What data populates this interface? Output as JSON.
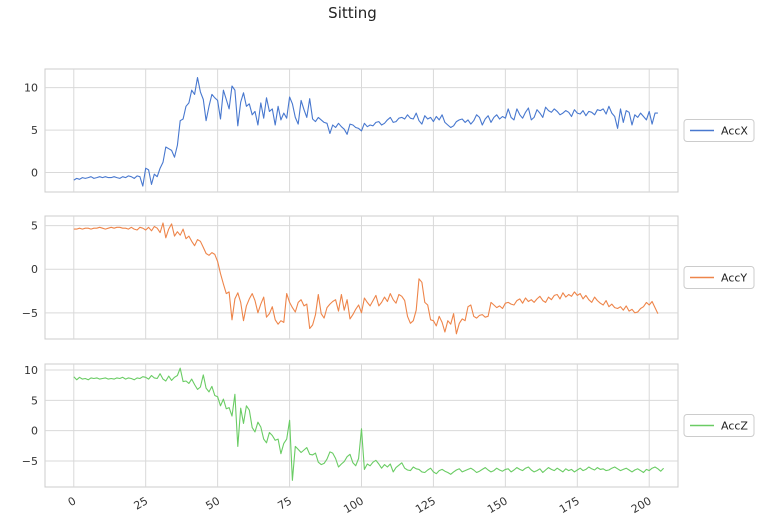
{
  "title": "Sitting",
  "chart_data": [
    {
      "type": "line",
      "series": [
        {
          "name": "AccX",
          "color": "#4878cf",
          "values": [
            -0.9,
            -0.7,
            -0.8,
            -0.6,
            -0.7,
            -0.6,
            -0.5,
            -0.7,
            -0.6,
            -0.5,
            -0.6,
            -0.5,
            -0.6,
            -0.6,
            -0.5,
            -0.6,
            -0.7,
            -0.5,
            -0.6,
            -0.4,
            -0.5,
            -0.7,
            -0.4,
            -0.5,
            -1.6,
            0.5,
            0.3,
            -1.4,
            -0.2,
            -0.5,
            0.5,
            1.2,
            3.0,
            2.8,
            2.6,
            1.8,
            3.2,
            6.1,
            6.3,
            7.8,
            8.2,
            9.7,
            9.2,
            11.2,
            9.5,
            8.6,
            6.1,
            7.8,
            9.2,
            8.8,
            8.5,
            6.3,
            9.7,
            8.6,
            7.5,
            10.2,
            9.7,
            5.5,
            8.3,
            9.4,
            7.8,
            8.1,
            6.8,
            7.2,
            5.6,
            8.2,
            6.4,
            8.8,
            7.2,
            7.5,
            5.6,
            7.8,
            6.2,
            7.0,
            6.4,
            8.9,
            8.1,
            6.5,
            5.7,
            8.5,
            7.4,
            6.5,
            8.7,
            6.3,
            6.0,
            6.5,
            6.2,
            5.9,
            5.8,
            4.6,
            5.6,
            5.3,
            5.8,
            5.4,
            5.1,
            4.5,
            5.7,
            5.6,
            5.3,
            5.2,
            4.9,
            5.8,
            5.4,
            5.6,
            5.5,
            5.9,
            6.0,
            5.6,
            5.8,
            6.2,
            6.5,
            5.9,
            6.0,
            6.4,
            6.5,
            6.3,
            6.8,
            6.4,
            6.3,
            7.0,
            6.1,
            5.7,
            6.7,
            6.3,
            6.5,
            6.0,
            6.6,
            6.2,
            6.8,
            5.9,
            5.6,
            5.3,
            5.5,
            6.0,
            6.2,
            6.3,
            5.9,
            6.2,
            5.7,
            6.1,
            6.8,
            6.5,
            5.6,
            6.3,
            6.7,
            5.9,
            6.5,
            6.8,
            6.3,
            6.6,
            6.4,
            7.5,
            6.5,
            6.2,
            7.5,
            6.8,
            6.4,
            7.1,
            7.6,
            6.2,
            6.5,
            7.4,
            7.0,
            6.5,
            7.7,
            7.3,
            7.1,
            7.5,
            7.2,
            6.8,
            7.0,
            7.3,
            7.1,
            6.6,
            7.4,
            7.0,
            6.9,
            7.3,
            6.7,
            7.2,
            7.1,
            6.8,
            7.4,
            7.3,
            7.5,
            6.9,
            7.8,
            7.0,
            6.6,
            5.2,
            7.5,
            5.9,
            7.3,
            7.1,
            5.6,
            6.8,
            6.5,
            7.0,
            6.6,
            6.2,
            7.2,
            5.7,
            7.0,
            7.0
          ]
        }
      ],
      "ylim": [
        -2.3,
        12.2
      ],
      "yticks": [
        0,
        5,
        10
      ],
      "ytick_labels": [
        "0",
        "5",
        "10"
      ],
      "xlim": [
        -10,
        210
      ],
      "grid": true,
      "legend": "right"
    },
    {
      "type": "line",
      "series": [
        {
          "name": "AccY",
          "color": "#ee854a",
          "values": [
            4.6,
            4.6,
            4.7,
            4.6,
            4.7,
            4.7,
            4.6,
            4.7,
            4.7,
            4.8,
            4.7,
            4.6,
            4.7,
            4.8,
            4.7,
            4.8,
            4.8,
            4.7,
            4.7,
            4.6,
            4.8,
            4.6,
            4.5,
            4.8,
            4.7,
            4.5,
            4.8,
            4.4,
            4.9,
            4.7,
            4.2,
            5.3,
            3.6,
            4.6,
            5.2,
            3.8,
            4.3,
            3.9,
            4.6,
            3.5,
            3.8,
            3.2,
            2.7,
            3.4,
            3.2,
            2.5,
            1.8,
            1.6,
            1.9,
            1.7,
            0.9,
            -0.5,
            -1.7,
            -2.8,
            -2.6,
            -5.8,
            -3.4,
            -2.7,
            -3.8,
            -5.9,
            -4.2,
            -3.4,
            -2.8,
            -3.6,
            -5.0,
            -4.0,
            -3.2,
            -5.5,
            -5.1,
            -4.3,
            -5.8,
            -6.3,
            -5.9,
            -6.1,
            -2.8,
            -3.8,
            -4.4,
            -4.9,
            -3.8,
            -3.5,
            -4.2,
            -4.0,
            -6.8,
            -6.4,
            -5.2,
            -2.9,
            -5.1,
            -5.6,
            -4.4,
            -4.0,
            -3.7,
            -3.5,
            -4.8,
            -2.9,
            -4.7,
            -3.5,
            -5.7,
            -5.2,
            -4.6,
            -4.1,
            -5.0,
            -3.3,
            -3.8,
            -4.2,
            -3.6,
            -3.0,
            -4.2,
            -3.8,
            -3.2,
            -3.7,
            -2.8,
            -3.5,
            -3.9,
            -2.9,
            -3.1,
            -3.6,
            -5.4,
            -6.2,
            -5.9,
            -4.7,
            -1.1,
            -1.5,
            -3.8,
            -4.1,
            -5.8,
            -5.9,
            -6.5,
            -5.4,
            -6.1,
            -7.2,
            -5.9,
            -6.3,
            -5.1,
            -7.4,
            -6.2,
            -5.7,
            -5.9,
            -4.3,
            -4.1,
            -5.4,
            -5.6,
            -5.3,
            -5.2,
            -5.5,
            -5.4,
            -3.8,
            -4.1,
            -4.4,
            -4.2,
            -4.5,
            -3.9,
            -3.8,
            -4.0,
            -4.1,
            -3.6,
            -3.4,
            -3.9,
            -3.3,
            -3.7,
            -3.5,
            -3.8,
            -3.4,
            -3.1,
            -3.6,
            -3.8,
            -3.2,
            -3.5,
            -3.0,
            -2.9,
            -3.4,
            -2.7,
            -3.2,
            -2.9,
            -3.1,
            -2.6,
            -3.0,
            -2.8,
            -3.4,
            -3.0,
            -3.5,
            -3.8,
            -3.2,
            -3.6,
            -3.9,
            -4.1,
            -3.6,
            -4.3,
            -4.0,
            -4.4,
            -4.5,
            -4.3,
            -4.7,
            -4.2,
            -4.8,
            -4.6,
            -5.0,
            -4.9,
            -4.5,
            -4.3,
            -3.8,
            -4.1,
            -3.7,
            -4.4,
            -5.1
          ]
        }
      ],
      "ylim": [
        -8.0,
        6.1
      ],
      "yticks": [
        -5,
        0,
        5
      ],
      "ytick_labels": [
        "−5",
        "0",
        "5"
      ],
      "xlim": [
        -10,
        210
      ],
      "grid": true,
      "legend": "right"
    },
    {
      "type": "line",
      "series": [
        {
          "name": "AccZ",
          "color": "#6acc64",
          "values": [
            8.9,
            8.4,
            8.8,
            8.5,
            8.6,
            8.4,
            8.7,
            8.6,
            8.7,
            8.5,
            8.6,
            8.7,
            8.5,
            8.6,
            8.5,
            8.7,
            8.6,
            8.8,
            8.5,
            8.7,
            8.6,
            8.4,
            8.7,
            8.6,
            8.9,
            8.8,
            8.5,
            9.1,
            8.7,
            8.6,
            9.4,
            8.5,
            8.2,
            9.0,
            8.3,
            8.8,
            9.1,
            10.3,
            8.1,
            8.2,
            7.8,
            8.5,
            7.6,
            6.8,
            7.2,
            9.2,
            7.0,
            6.4,
            7.3,
            5.8,
            5.6,
            4.1,
            5.2,
            3.6,
            3.8,
            2.4,
            6.0,
            -2.6,
            3.7,
            1.2,
            4.1,
            3.4,
            0.5,
            -0.2,
            1.4,
            0.6,
            -1.4,
            -2.0,
            -0.3,
            -0.8,
            -1.6,
            -1.4,
            -3.8,
            -2.1,
            -1.4,
            1.7,
            -8.2,
            -2.6,
            -3.1,
            -3.6,
            -3.2,
            -2.8,
            -3.9,
            -4.0,
            -3.7,
            -5.2,
            -5.6,
            -5.4,
            -4.7,
            -3.5,
            -3.7,
            -4.6,
            -6.0,
            -5.5,
            -5.1,
            -4.3,
            -3.9,
            -5.3,
            -5.8,
            -4.6,
            0.3,
            -6.4,
            -5.5,
            -5.8,
            -5.2,
            -4.9,
            -5.5,
            -6.2,
            -5.6,
            -6.0,
            -5.5,
            -6.8,
            -6.1,
            -5.7,
            -5.3,
            -6.2,
            -6.5,
            -6.6,
            -6.0,
            -6.3,
            -6.4,
            -6.8,
            -6.9,
            -6.5,
            -6.2,
            -6.8,
            -7.1,
            -6.6,
            -6.4,
            -6.7,
            -6.9,
            -7.2,
            -6.8,
            -6.5,
            -6.3,
            -6.8,
            -6.6,
            -6.4,
            -6.2,
            -6.5,
            -6.9,
            -6.7,
            -6.4,
            -6.1,
            -6.5,
            -6.8,
            -6.6,
            -6.2,
            -6.5,
            -6.7,
            -6.4,
            -6.3,
            -6.8,
            -6.5,
            -6.1,
            -6.4,
            -6.6,
            -6.2,
            -6.0,
            -6.5,
            -6.8,
            -6.6,
            -6.3,
            -6.9,
            -6.5,
            -6.1,
            -6.4,
            -6.6,
            -6.2,
            -6.5,
            -6.8,
            -6.3,
            -6.6,
            -6.4,
            -6.8,
            -6.5,
            -6.2,
            -6.6,
            -6.4,
            -6.0,
            -6.3,
            -6.5,
            -6.1,
            -6.4,
            -6.3,
            -6.6,
            -6.5,
            -6.2,
            -6.0,
            -6.3,
            -6.6,
            -6.4,
            -6.2,
            -6.5,
            -6.8,
            -6.5,
            -6.3,
            -6.6,
            -6.9,
            -6.4,
            -6.6,
            -6.2,
            -6.0,
            -6.3,
            -6.7,
            -6.2
          ]
        }
      ],
      "ylim": [
        -9.3,
        11.0
      ],
      "yticks": [
        -5,
        0,
        5,
        10
      ],
      "ytick_labels": [
        "−5",
        "0",
        "5",
        "10"
      ],
      "xlim": [
        -10,
        210
      ],
      "grid": true,
      "legend": "right"
    }
  ],
  "x_axis": {
    "ticks": [
      0,
      25,
      50,
      75,
      100,
      125,
      150,
      175,
      200
    ],
    "tick_labels": [
      "0",
      "25",
      "50",
      "75",
      "100",
      "125",
      "150",
      "175",
      "200"
    ]
  }
}
